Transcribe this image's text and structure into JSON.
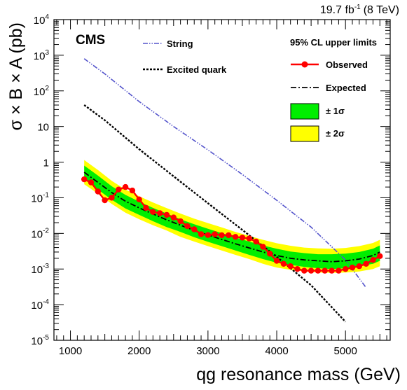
{
  "chart_data": {
    "type": "line",
    "lumi_label": "19.7 fb",
    "lumi_unit_sup": "-1",
    "lumi_energy": "(8 TeV)",
    "experiment_label": "CMS",
    "xlabel": "qg resonance mass (GeV)",
    "ylabel": "σ × B × A (pb)",
    "xlim": [
      760,
      5650
    ],
    "ylim": [
      1e-05,
      10000
    ],
    "y_scale": "log",
    "x_ticks": [
      1000,
      2000,
      3000,
      4000,
      5000
    ],
    "y_ticks": [
      {
        "value": 1e-05,
        "base": "10",
        "exp": "-5"
      },
      {
        "value": 0.0001,
        "base": "10",
        "exp": "-4"
      },
      {
        "value": 0.001,
        "base": "10",
        "exp": "-3"
      },
      {
        "value": 0.01,
        "base": "10",
        "exp": "-2"
      },
      {
        "value": 0.1,
        "base": "10",
        "exp": "-1"
      },
      {
        "value": 1,
        "base": "1",
        "exp": ""
      },
      {
        "value": 10,
        "base": "10",
        "exp": ""
      },
      {
        "value": 100,
        "base": "10",
        "exp": "2"
      },
      {
        "value": 1000,
        "base": "10",
        "exp": "3"
      },
      {
        "value": 10000,
        "base": "10",
        "exp": "4"
      }
    ],
    "legend_title": "95% CL upper limits",
    "legend_items": {
      "observed": "Observed",
      "expected": "Expected",
      "one_sigma": "± 1σ",
      "two_sigma": "± 2σ",
      "string": "String",
      "excited_quark": "Excited quark"
    },
    "colors": {
      "observed": "#ff0000",
      "expected": "#000000",
      "one_sigma": "#00ee00",
      "two_sigma": "#ffff00",
      "string": "#5555cc",
      "excited_quark": "#000000"
    },
    "band": {
      "mass": [
        1200,
        1400,
        1600,
        1800,
        2000,
        2200,
        2400,
        2600,
        2800,
        3000,
        3200,
        3400,
        3600,
        3800,
        4000,
        4200,
        4400,
        4600,
        4800,
        5000,
        5200,
        5400,
        5500
      ],
      "minus2": [
        0.24,
        0.13,
        0.067,
        0.038,
        0.025,
        0.017,
        0.012,
        0.008,
        0.0059,
        0.0044,
        0.0033,
        0.0025,
        0.0019,
        0.0014,
        0.0011,
        0.00095,
        0.00085,
        0.0008,
        0.00078,
        0.0008,
        0.00085,
        0.001,
        0.0012
      ],
      "minus1": [
        0.33,
        0.17,
        0.088,
        0.05,
        0.033,
        0.022,
        0.015,
        0.011,
        0.0078,
        0.0058,
        0.0044,
        0.0033,
        0.0025,
        0.0019,
        0.0015,
        0.0013,
        0.00115,
        0.00105,
        0.001,
        0.00105,
        0.0012,
        0.0014,
        0.0017
      ],
      "expected": [
        0.52,
        0.27,
        0.14,
        0.08,
        0.052,
        0.035,
        0.024,
        0.017,
        0.012,
        0.009,
        0.0068,
        0.0051,
        0.0039,
        0.003,
        0.0024,
        0.002,
        0.0018,
        0.0017,
        0.0016,
        0.0017,
        0.0019,
        0.0024,
        0.003
      ],
      "plus1": [
        0.8,
        0.42,
        0.21,
        0.12,
        0.078,
        0.052,
        0.036,
        0.025,
        0.018,
        0.0135,
        0.0102,
        0.0077,
        0.0059,
        0.0046,
        0.0037,
        0.0031,
        0.0028,
        0.0026,
        0.0026,
        0.0027,
        0.003,
        0.0037,
        0.0046
      ],
      "plus2": [
        1.15,
        0.6,
        0.3,
        0.17,
        0.11,
        0.074,
        0.051,
        0.036,
        0.026,
        0.0195,
        0.0148,
        0.011,
        0.0085,
        0.0066,
        0.0053,
        0.0045,
        0.004,
        0.0038,
        0.0037,
        0.0039,
        0.0044,
        0.0054,
        0.0066
      ]
    },
    "observed": {
      "mass": [
        1200,
        1300,
        1400,
        1500,
        1600,
        1700,
        1800,
        1900,
        2000,
        2100,
        2200,
        2300,
        2400,
        2500,
        2600,
        2700,
        2800,
        2900,
        3000,
        3100,
        3200,
        3300,
        3400,
        3500,
        3600,
        3700,
        3800,
        3900,
        4000,
        4100,
        4200,
        4300,
        4400,
        4500,
        4600,
        4700,
        4800,
        4900,
        5000,
        5100,
        5200,
        5300,
        5400,
        5500
      ],
      "values": [
        0.33,
        0.27,
        0.15,
        0.085,
        0.1,
        0.17,
        0.2,
        0.16,
        0.09,
        0.052,
        0.04,
        0.037,
        0.033,
        0.028,
        0.022,
        0.016,
        0.013,
        0.0095,
        0.009,
        0.0095,
        0.0089,
        0.0089,
        0.008,
        0.0076,
        0.0072,
        0.0059,
        0.0042,
        0.0027,
        0.0017,
        0.0014,
        0.0012,
        0.001,
        0.0009,
        0.0009,
        0.0009,
        0.0009,
        0.0009,
        0.0009,
        0.001,
        0.0011,
        0.0012,
        0.0014,
        0.0018,
        0.0023
      ]
    },
    "string": {
      "mass": [
        1200,
        1500,
        2000,
        2500,
        3000,
        3500,
        4000,
        4500,
        5000,
        5300
      ],
      "values": [
        800,
        300,
        50,
        10,
        2.2,
        0.45,
        0.085,
        0.015,
        0.0018,
        0.0003
      ]
    },
    "excited_quark": {
      "mass": [
        1200,
        1500,
        2000,
        2500,
        3000,
        3500,
        4000,
        4500,
        5000
      ],
      "values": [
        40,
        15,
        2.3,
        0.4,
        0.07,
        0.0125,
        0.0022,
        0.00035,
        3.3e-05
      ]
    }
  }
}
